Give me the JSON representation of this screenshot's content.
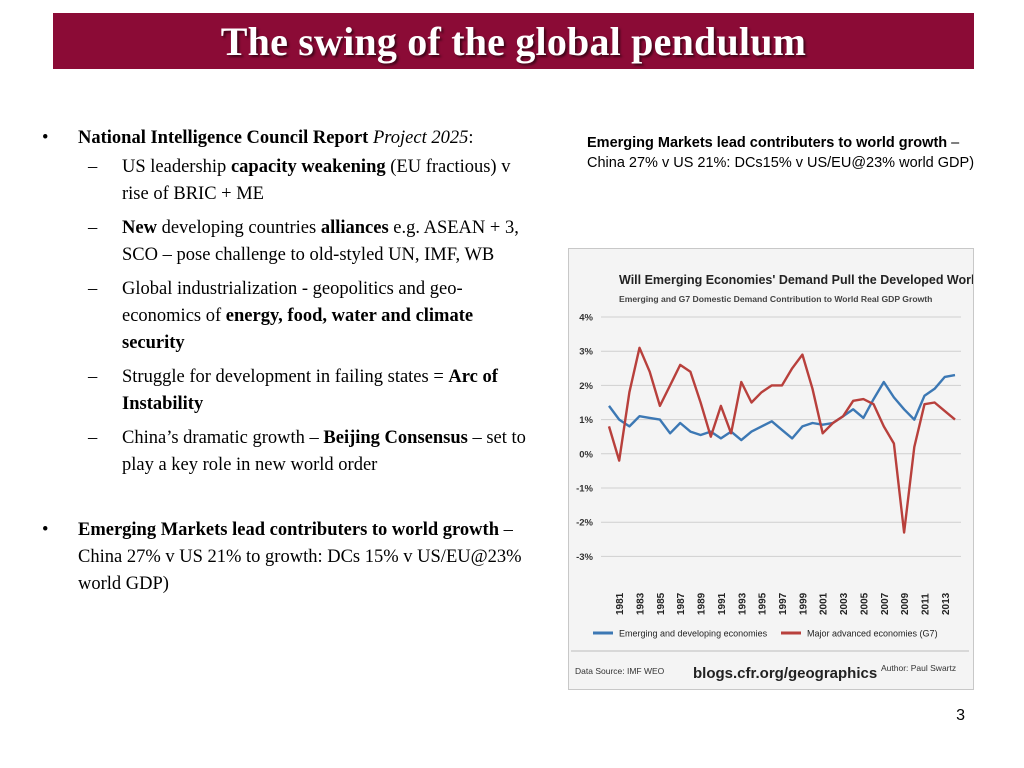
{
  "slide": {
    "title": "The swing of the global pendulum",
    "page_number": "3"
  },
  "left": {
    "bullet1": {
      "bold": "National Intelligence Council Report",
      "italic": "Project 2025",
      "tail": ":"
    },
    "subs": [
      {
        "parts": [
          {
            "t": "US leadership ",
            "b": false
          },
          {
            "t": "capacity weakening",
            "b": true
          },
          {
            "t": " (EU fractious) v rise of BRIC + ME",
            "b": false
          }
        ]
      },
      {
        "parts": [
          {
            "t": "New",
            "b": true
          },
          {
            "t": " developing countries ",
            "b": false
          },
          {
            "t": "alliances",
            "b": true
          },
          {
            "t": " e.g. ASEAN + 3, SCO – pose challenge to old-styled UN, IMF, WB",
            "b": false
          }
        ]
      },
      {
        "parts": [
          {
            "t": "Global industrialization - geopolitics and geo-economics of ",
            "b": false
          },
          {
            "t": "energy, food, water and climate security",
            "b": true
          }
        ]
      },
      {
        "parts": [
          {
            "t": "Struggle for development in failing states = ",
            "b": false
          },
          {
            "t": "Arc of Instability",
            "b": true
          }
        ]
      },
      {
        "parts": [
          {
            "t": "China’s dramatic growth – ",
            "b": false
          },
          {
            "t": "Beijing Consensus",
            "b": true
          },
          {
            "t": " – set to play a key role in new world order",
            "b": false
          }
        ]
      }
    ],
    "bullet2": {
      "bold": "Emerging Markets lead contributers to world growth",
      "tail": " – China 27% v US 21% to growth: DCs 15% v US/EU@23% world GDP)"
    }
  },
  "right_caption": {
    "bold": "Emerging Markets lead contributers to world growth",
    "tail": " – China 27% v US 21%: DCs15% v US/EU@23% world GDP)"
  },
  "chart_data": {
    "type": "line",
    "title": "Will Emerging Economies' Demand Pull the Developed World?",
    "subtitle": "Emerging and G7 Domestic Demand Contribution to World Real GDP Growth",
    "y_ticks": [
      "4%",
      "3%",
      "2%",
      "1%",
      "0%",
      "-1%",
      "-2%",
      "-3%"
    ],
    "ylim": [
      -3,
      4
    ],
    "x_labels": [
      "1981",
      "1983",
      "1985",
      "1987",
      "1989",
      "1991",
      "1993",
      "1995",
      "1997",
      "1999",
      "2001",
      "2003",
      "2005",
      "2007",
      "2009",
      "2011",
      "2013"
    ],
    "x": [
      1980,
      1981,
      1982,
      1983,
      1984,
      1985,
      1986,
      1987,
      1988,
      1989,
      1990,
      1991,
      1992,
      1993,
      1994,
      1995,
      1996,
      1997,
      1998,
      1999,
      2000,
      2001,
      2002,
      2003,
      2004,
      2005,
      2006,
      2007,
      2008,
      2009,
      2010,
      2011,
      2012,
      2013,
      2014
    ],
    "series": [
      {
        "name": "Emerging and developing economies",
        "color": "#3c78b4",
        "values": [
          1.4,
          1.0,
          0.8,
          1.1,
          1.05,
          1.0,
          0.6,
          0.9,
          0.65,
          0.55,
          0.65,
          0.45,
          0.65,
          0.4,
          0.65,
          0.8,
          0.95,
          0.7,
          0.45,
          0.8,
          0.9,
          0.85,
          0.9,
          1.1,
          1.3,
          1.05,
          1.6,
          2.1,
          1.65,
          1.3,
          1.0,
          1.7,
          1.9,
          2.25,
          2.3
        ]
      },
      {
        "name": "Major advanced economies (G7)",
        "color": "#b8403c",
        "values": [
          0.8,
          -0.2,
          1.8,
          3.1,
          2.4,
          1.4,
          2.0,
          2.6,
          2.4,
          1.5,
          0.5,
          1.4,
          0.6,
          2.1,
          1.5,
          1.8,
          2.0,
          2.0,
          2.5,
          2.9,
          1.9,
          0.6,
          0.9,
          1.1,
          1.55,
          1.6,
          1.45,
          0.8,
          0.3,
          -2.3,
          0.2,
          1.45,
          1.5,
          1.25,
          1.0
        ]
      }
    ],
    "legend": "bottom",
    "footer_source": "Data Source: IMF WEO",
    "footer_url": "blogs.cfr.org/geographics",
    "footer_author": "Author: Paul Swartz"
  }
}
